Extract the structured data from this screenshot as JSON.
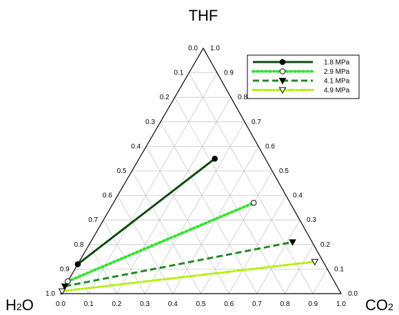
{
  "chart_data": {
    "type": "ternary-line",
    "apex_labels": {
      "top": "THF",
      "bottom_left_main": "H",
      "bottom_left_sub": "2",
      "bottom_left_tail": "O",
      "bottom_right_main": "CO",
      "bottom_right_sub": "2"
    },
    "axes": {
      "left_edge_ticks": [
        "0.0",
        "0.1",
        "0.2",
        "0.3",
        "0.4",
        "0.5",
        "0.6",
        "0.7",
        "0.8",
        "0.9",
        "1.0"
      ],
      "right_edge_ticks": [
        "1.0",
        "0.9",
        "0.8",
        "0.7",
        "0.6",
        "0.5",
        "0.4",
        "0.3",
        "0.2",
        "0.1",
        "0.0"
      ],
      "bottom_edge_ticks": [
        "0.0",
        "0.1",
        "0.2",
        "0.3",
        "0.4",
        "0.5",
        "0.6",
        "0.7",
        "0.8",
        "0.9",
        "1.0"
      ],
      "grid": true,
      "grid_step": 0.1
    },
    "legend_position": "top-right",
    "series": [
      {
        "name": "1.8 MPa",
        "color": "#0b4a0b",
        "dash": "solid",
        "marker": "circle-filled",
        "points": [
          {
            "co2": 0.0,
            "thf": 0.12
          },
          {
            "co2": 0.27,
            "thf": 0.55
          }
        ]
      },
      {
        "name": "2.9 MPa",
        "color": "#2ee52e",
        "dash": "dotted",
        "marker": "circle-open",
        "points": [
          {
            "co2": 0.0,
            "thf": 0.05
          },
          {
            "co2": 0.5,
            "thf": 0.37
          }
        ]
      },
      {
        "name": "4.1 MPa",
        "color": "#1f8a1f",
        "dash": "dashed",
        "marker": "triangle-down-filled",
        "points": [
          {
            "co2": 0.0,
            "thf": 0.03
          },
          {
            "co2": 0.72,
            "thf": 0.21
          }
        ]
      },
      {
        "name": "4.9 MPa",
        "color": "#b3f000",
        "dash": "dash-dot",
        "marker": "triangle-down-open",
        "points": [
          {
            "co2": 0.0,
            "thf": 0.01
          },
          {
            "co2": 0.84,
            "thf": 0.13
          }
        ]
      }
    ]
  }
}
